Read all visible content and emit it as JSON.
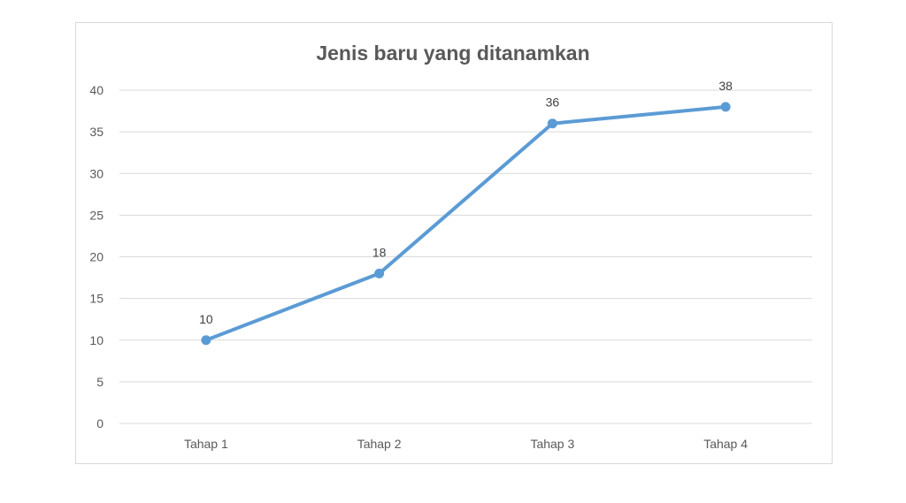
{
  "chart_data": {
    "type": "line",
    "title": "Jenis baru yang ditanamkan",
    "categories": [
      "Tahap 1",
      "Tahap 2",
      "Tahap 3",
      "Tahap 4"
    ],
    "series": [
      {
        "values": [
          10,
          18,
          36,
          38
        ],
        "color": "#5B9BD5"
      }
    ],
    "data_labels": [
      "10",
      "18",
      "36",
      "38"
    ],
    "y_ticks": [
      "0",
      "5",
      "10",
      "15",
      "20",
      "25",
      "30",
      "35",
      "40"
    ],
    "ylim": [
      0,
      40
    ],
    "grid": true,
    "legend": "none"
  }
}
